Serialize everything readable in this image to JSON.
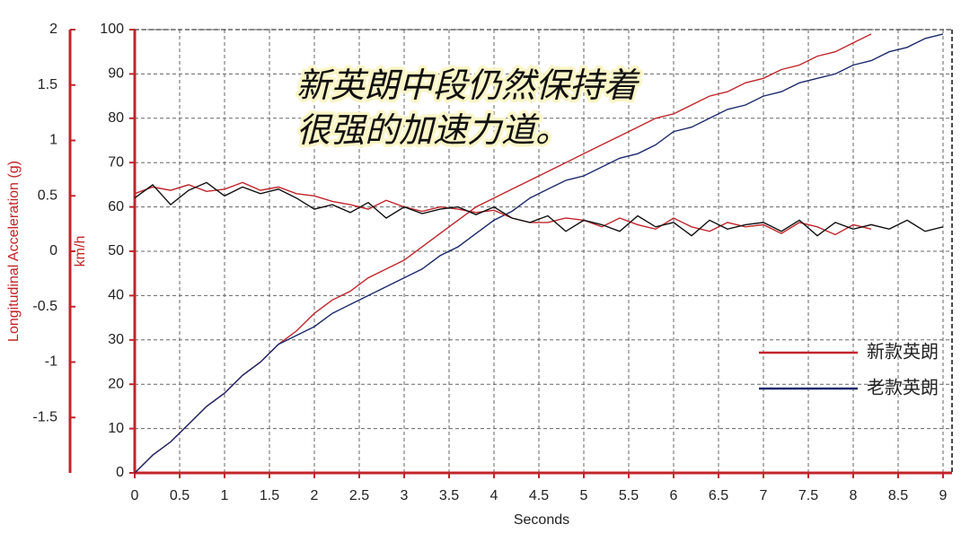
{
  "chart_data": {
    "type": "line",
    "annotation": [
      "新英朗中段仍然保持着",
      "很强的加速力道。"
    ],
    "x_label": "Seconds",
    "y_label": "km/h",
    "y2_label": "Longitudinal Acceleration (g)",
    "xlim": [
      0,
      9.1
    ],
    "xticks": [
      0,
      0.5,
      1,
      1.5,
      2,
      2.5,
      3,
      3.5,
      4,
      4.5,
      5,
      5.5,
      6,
      6.5,
      7,
      7.5,
      8,
      8.5,
      9
    ],
    "ylim": [
      0,
      100
    ],
    "yticks": [
      0,
      10,
      20,
      30,
      40,
      50,
      60,
      70,
      80,
      90,
      100
    ],
    "y2lim": [
      -2,
      2
    ],
    "y2ticks": [
      -1.5,
      -1,
      -0.5,
      0,
      0.5,
      1,
      1.5,
      2
    ],
    "y2_color": "#c0252b",
    "grid": true,
    "legend": "right",
    "x": [
      0,
      0.2,
      0.4,
      0.6,
      0.8,
      1,
      1.2,
      1.4,
      1.6,
      1.8,
      2,
      2.2,
      2.4,
      2.6,
      2.8,
      3,
      3.2,
      3.4,
      3.6,
      3.8,
      4,
      4.2,
      4.4,
      4.6,
      4.8,
      5,
      5.2,
      5.4,
      5.6,
      5.8,
      6,
      6.2,
      6.4,
      6.6,
      6.8,
      7,
      7.2,
      7.4,
      7.6,
      7.8,
      8,
      8.2,
      8.4,
      8.6,
      8.8,
      9
    ],
    "series": [
      {
        "name": "新款英朗",
        "color": "#c0252b",
        "values": [
          0,
          4,
          7,
          11,
          15,
          18,
          22,
          25,
          29,
          32,
          36,
          39,
          41,
          44,
          46,
          48,
          51,
          54,
          57,
          60,
          62,
          64,
          66,
          68,
          70,
          72,
          74,
          76,
          78,
          80,
          81,
          83,
          85,
          86,
          88,
          89,
          91,
          92,
          94,
          95,
          97,
          99,
          null,
          null,
          null,
          null
        ]
      },
      {
        "name": "老款英朗",
        "color": "#1c2a6b",
        "values": [
          0,
          4,
          7,
          11,
          15,
          18,
          22,
          25,
          29,
          31,
          33,
          36,
          38,
          40,
          42,
          44,
          46,
          49,
          51,
          54,
          57,
          59,
          62,
          64,
          66,
          67,
          69,
          71,
          72,
          74,
          77,
          78,
          80,
          82,
          83,
          85,
          86,
          88,
          89,
          90,
          92,
          93,
          95,
          96,
          98,
          99
        ]
      },
      {
        "color": "#c0252b",
        "axis": "y2",
        "values": [
          0.52,
          0.58,
          0.55,
          0.6,
          0.54,
          0.56,
          0.62,
          0.55,
          0.58,
          0.52,
          0.5,
          0.45,
          0.42,
          0.38,
          0.46,
          0.4,
          0.36,
          0.4,
          0.38,
          0.35,
          0.37,
          0.3,
          0.26,
          0.26,
          0.3,
          0.28,
          0.22,
          0.3,
          0.24,
          0.2,
          0.3,
          0.22,
          0.18,
          0.26,
          0.22,
          0.24,
          0.16,
          0.26,
          0.22,
          0.15,
          0.24,
          0.2,
          null,
          null,
          null,
          null
        ]
      },
      {
        "color": "#111111",
        "axis": "y2",
        "values": [
          0.48,
          0.6,
          0.42,
          0.55,
          0.62,
          0.5,
          0.58,
          0.52,
          0.56,
          0.48,
          0.38,
          0.42,
          0.35,
          0.44,
          0.3,
          0.4,
          0.34,
          0.38,
          0.4,
          0.33,
          0.4,
          0.3,
          0.26,
          0.32,
          0.18,
          0.28,
          0.24,
          0.18,
          0.32,
          0.22,
          0.26,
          0.14,
          0.28,
          0.2,
          0.24,
          0.26,
          0.18,
          0.28,
          0.14,
          0.26,
          0.2,
          0.24,
          0.2,
          0.28,
          0.18,
          0.22
        ]
      }
    ]
  }
}
